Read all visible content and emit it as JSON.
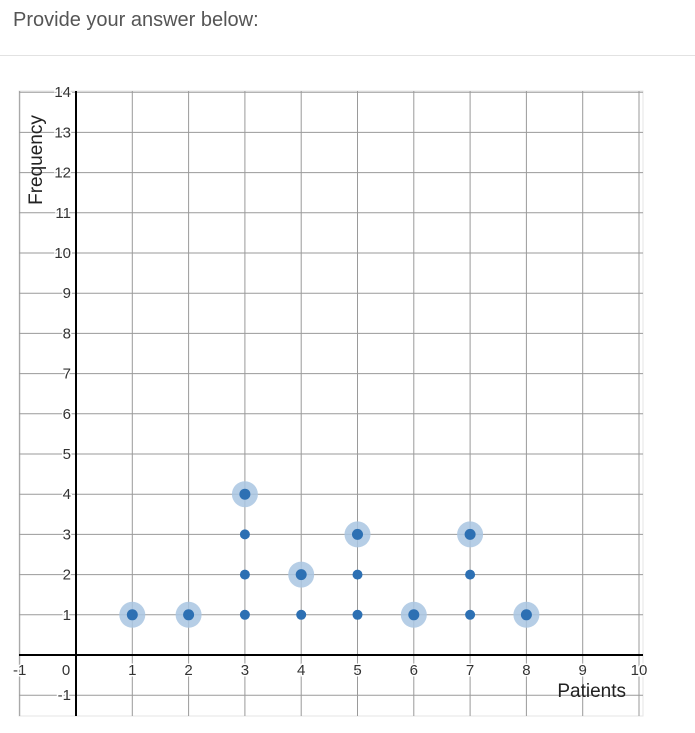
{
  "prompt": "Provide your answer below:",
  "chart_data": {
    "type": "scatter",
    "title": "",
    "xlabel": "Patients",
    "ylabel": "Frequency",
    "xlim": [
      -1,
      10
    ],
    "ylim": [
      -1,
      14
    ],
    "grid": true,
    "x_ticks": [
      "-1",
      "0",
      "1",
      "2",
      "3",
      "4",
      "5",
      "6",
      "7",
      "8",
      "9",
      "10"
    ],
    "y_ticks": [
      "14",
      "13",
      "12",
      "11",
      "10",
      "9",
      "8",
      "7",
      "6",
      "5",
      "4",
      "3",
      "2",
      "1",
      "-1"
    ],
    "points": [
      {
        "x": 1,
        "y": 1,
        "handle": true
      },
      {
        "x": 2,
        "y": 1,
        "handle": true
      },
      {
        "x": 3,
        "y": 1,
        "handle": false
      },
      {
        "x": 3,
        "y": 2,
        "handle": false
      },
      {
        "x": 3,
        "y": 3,
        "handle": false
      },
      {
        "x": 3,
        "y": 4,
        "handle": true
      },
      {
        "x": 4,
        "y": 1,
        "handle": false
      },
      {
        "x": 4,
        "y": 2,
        "handle": true
      },
      {
        "x": 5,
        "y": 1,
        "handle": false
      },
      {
        "x": 5,
        "y": 2,
        "handle": false
      },
      {
        "x": 5,
        "y": 3,
        "handle": true
      },
      {
        "x": 6,
        "y": 1,
        "handle": true
      },
      {
        "x": 7,
        "y": 1,
        "handle": false
      },
      {
        "x": 7,
        "y": 2,
        "handle": false
      },
      {
        "x": 7,
        "y": 3,
        "handle": true
      },
      {
        "x": 8,
        "y": 1,
        "handle": true
      }
    ],
    "colors": {
      "point": "#2d70b3",
      "handle": "#a9c6e2",
      "grid": "#9a9a9a",
      "axis": "#000000",
      "tick_text": "#333333",
      "frame": "#e6e6e6"
    }
  }
}
